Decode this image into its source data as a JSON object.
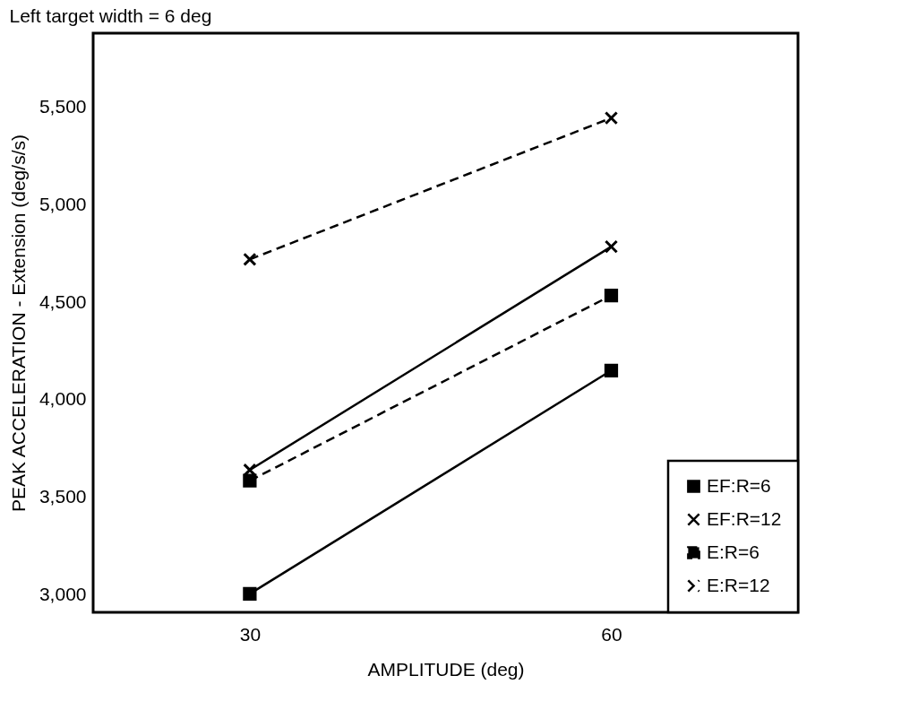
{
  "chart_data": {
    "type": "line",
    "title": "Left target width = 6 deg",
    "xlabel": "AMPLITUDE (deg)",
    "ylabel": "PEAK ACCELERATION - Extension (deg/s/s)",
    "x": [
      30,
      60
    ],
    "xlim": [
      17,
      75.5
    ],
    "xticks": [
      30,
      60
    ],
    "ylim": [
      2910,
      5880
    ],
    "yticks": [
      {
        "value": 3000,
        "label": "3,000"
      },
      {
        "value": 3500,
        "label": "3,500"
      },
      {
        "value": 4000,
        "label": "4,000"
      },
      {
        "value": 4500,
        "label": "4,500"
      },
      {
        "value": 5000,
        "label": "5,000"
      },
      {
        "value": 5500,
        "label": "5,500"
      }
    ],
    "grid": false,
    "legend": "bottom right",
    "series": [
      {
        "name": "EF:R=6",
        "color": "#000000",
        "marker": "square",
        "line_style": "solid",
        "values": [
          3005,
          4150
        ]
      },
      {
        "name": "EF:R=12",
        "color": "#000000",
        "marker": "cross",
        "line_style": "solid",
        "values": [
          3640,
          4785
        ]
      },
      {
        "name": "E:R=6",
        "color": "#000000",
        "marker": "square",
        "line_style": "dashed",
        "values": [
          3585,
          4535
        ]
      },
      {
        "name": "E:R=12",
        "color": "#000000",
        "marker": "cross",
        "line_style": "dashed",
        "values": [
          4720,
          5445
        ]
      }
    ]
  }
}
